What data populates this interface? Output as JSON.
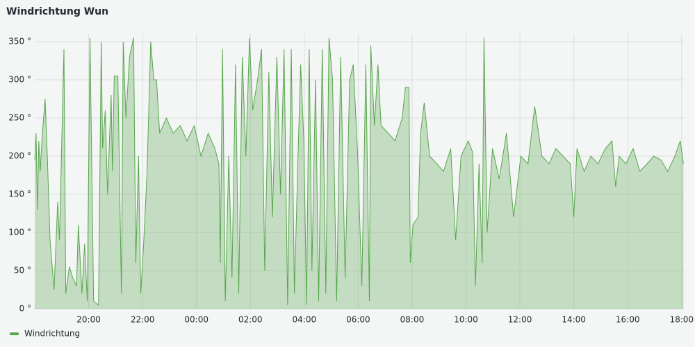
{
  "chart_data": {
    "type": "area",
    "title": "Windrichtung Wun",
    "x": [
      "18:00",
      "18:03",
      "18:06",
      "18:09",
      "18:12",
      "18:17",
      "18:23",
      "18:28",
      "18:34",
      "18:43",
      "18:51",
      "18:55",
      "18:59",
      "19:05",
      "19:09",
      "19:17",
      "19:25",
      "19:33",
      "19:37",
      "19:45",
      "19:51",
      "19:57",
      "20:03",
      "20:11",
      "20:22",
      "20:28",
      "20:31",
      "20:37",
      "20:42",
      "20:50",
      "20:53",
      "20:57",
      "21:05",
      "21:13",
      "21:17",
      "21:23",
      "21:31",
      "21:40",
      "21:45",
      "21:51",
      "21:56",
      "22:02",
      "22:10",
      "22:18",
      "22:25",
      "22:31",
      "22:38",
      "22:53",
      "23:08",
      "23:24",
      "23:39",
      "23:55",
      "00:10",
      "00:26",
      "00:41",
      "00:50",
      "00:53",
      "00:58",
      "01:04",
      "01:12",
      "01:19",
      "01:27",
      "01:34",
      "01:42",
      "01:50",
      "01:58",
      "02:05",
      "02:16",
      "02:25",
      "02:32",
      "02:41",
      "02:49",
      "02:59",
      "03:07",
      "03:15",
      "03:23",
      "03:31",
      "03:38",
      "03:46",
      "03:52",
      "03:59",
      "04:05",
      "04:11",
      "04:17",
      "04:25",
      "04:32",
      "04:40",
      "04:48",
      "04:55",
      "05:03",
      "05:12",
      "05:21",
      "05:31",
      "05:41",
      "05:49",
      "05:59",
      "06:08",
      "06:17",
      "06:25",
      "06:28",
      "06:36",
      "06:44",
      "06:51",
      "07:07",
      "07:22",
      "07:38",
      "07:45",
      "07:53",
      "07:56",
      "08:02",
      "08:13",
      "08:19",
      "08:27",
      "08:39",
      "08:55",
      "09:10",
      "09:26",
      "09:37",
      "09:49",
      "10:05",
      "10:15",
      "10:21",
      "10:29",
      "10:36",
      "10:40",
      "10:47",
      "10:59",
      "11:14",
      "11:30",
      "11:46",
      "12:02",
      "12:18",
      "12:33",
      "12:49",
      "13:05",
      "13:20",
      "13:36",
      "13:52",
      "14:00",
      "14:07",
      "14:23",
      "14:38",
      "14:54",
      "15:10",
      "15:25",
      "15:33",
      "15:41",
      "15:56",
      "16:12",
      "16:27",
      "16:43",
      "16:58",
      "17:14",
      "17:29",
      "17:45",
      "17:57",
      "18:04"
    ],
    "series": [
      {
        "name": "Windrichtung",
        "color": "#56a64b",
        "values": [
          195,
          230,
          130,
          220,
          180,
          230,
          275,
          200,
          90,
          25,
          140,
          90,
          190,
          340,
          20,
          55,
          40,
          30,
          110,
          20,
          85,
          10,
          355,
          10,
          5,
          350,
          210,
          260,
          150,
          280,
          180,
          305,
          305,
          20,
          350,
          250,
          330,
          355,
          60,
          200,
          20,
          80,
          180,
          350,
          300,
          300,
          230,
          250,
          230,
          240,
          220,
          240,
          200,
          230,
          210,
          190,
          60,
          340,
          10,
          200,
          40,
          320,
          20,
          330,
          200,
          355,
          260,
          300,
          340,
          50,
          310,
          120,
          330,
          150,
          340,
          5,
          340,
          20,
          200,
          320,
          220,
          5,
          340,
          50,
          300,
          10,
          340,
          20,
          355,
          300,
          10,
          330,
          40,
          300,
          320,
          200,
          30,
          320,
          10,
          345,
          240,
          320,
          240,
          230,
          220,
          250,
          290,
          290,
          60,
          110,
          120,
          230,
          270,
          200,
          190,
          180,
          210,
          90,
          200,
          220,
          205,
          30,
          190,
          60,
          355,
          100,
          210,
          170,
          230,
          120,
          200,
          190,
          265,
          200,
          190,
          210,
          200,
          190,
          120,
          210,
          180,
          200,
          190,
          210,
          220,
          160,
          200,
          190,
          210,
          180,
          190,
          200,
          195,
          180,
          200,
          220,
          190
        ]
      }
    ],
    "xlim": [
      "18:00",
      "18:05"
    ],
    "xticks": [
      "20:00",
      "22:00",
      "00:00",
      "02:00",
      "04:00",
      "06:00",
      "08:00",
      "10:00",
      "12:00",
      "14:00",
      "16:00",
      "18:00"
    ],
    "ylim": [
      0,
      360
    ],
    "yticks": [
      {
        "value": 0,
        "label": "0 °"
      },
      {
        "value": 50,
        "label": "50 °"
      },
      {
        "value": 100,
        "label": "100 °"
      },
      {
        "value": 150,
        "label": "150 °"
      },
      {
        "value": 200,
        "label": "200 °"
      },
      {
        "value": 250,
        "label": "250 °"
      },
      {
        "value": 300,
        "label": "300 °"
      },
      {
        "value": 350,
        "label": "350 °"
      }
    ],
    "grid": true,
    "legend": "bottom-left"
  }
}
